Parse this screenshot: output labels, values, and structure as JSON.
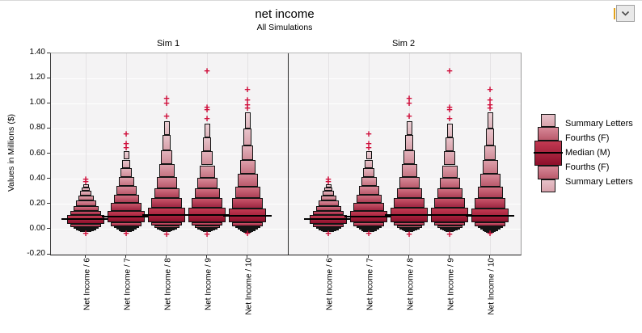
{
  "window": {
    "dropdown_icon": "chevron-down"
  },
  "chart_data": {
    "type": "letter-value-boxplot",
    "title": "net income",
    "subtitle": "All Simulations",
    "ylabel": "Values in Millions ($)",
    "ylim": [
      -0.2,
      1.4
    ],
    "yticks": [
      1.4,
      1.2,
      1.0,
      0.8,
      0.6,
      0.4,
      0.2,
      0.0,
      -0.2
    ],
    "grid": true,
    "legend_position": "right",
    "legend_entries": [
      "Summary Letters",
      "Fourths (F)",
      "Median (M)",
      "Fourths (F)",
      "Summary Letters"
    ],
    "outlier_color": "#d0103c",
    "box_color_ramp": [
      [
        "#c23a52",
        "#8e0f2b"
      ],
      [
        "#c9556a",
        "#9e2742"
      ],
      [
        "#d06f80",
        "#ad4056"
      ],
      [
        "#d78897",
        "#ba5a6c"
      ],
      [
        "#dd9faa",
        "#c67482"
      ],
      [
        "#e2b2bb",
        "#d08d99"
      ],
      [
        "#e7c2c9",
        "#d8a2ac"
      ],
      [
        "#ebcfd4",
        "#deb4bc"
      ]
    ],
    "panels": [
      {
        "title": "Sim 1",
        "categories": [
          "Net Income / 6",
          "Net Income / 7",
          "Net Income / 8",
          "Net Income / 9",
          "Net Income / 10"
        ],
        "columns": [
          {
            "category": "Net Income / 6",
            "median": 0.08,
            "segments": [
              [
                0.36,
                0.335,
                7
              ],
              [
                0.335,
                0.305,
                6
              ],
              [
                0.305,
                0.27,
                5
              ],
              [
                0.27,
                0.23,
                4
              ],
              [
                0.23,
                0.185,
                3
              ],
              [
                0.185,
                0.145,
                2
              ],
              [
                0.145,
                0.115,
                1
              ],
              [
                0.115,
                0.045,
                0
              ],
              [
                0.045,
                0.02,
                1
              ],
              [
                0.02,
                0.005,
                2
              ],
              [
                0.005,
                -0.003,
                3
              ],
              [
                -0.003,
                -0.01,
                4
              ],
              [
                -0.01,
                -0.016,
                5
              ]
            ],
            "outliers_top": [
              0.38,
              0.4
            ],
            "outliers_bottom": [
              -0.03
            ]
          },
          {
            "category": "Net Income / 7",
            "median": 0.1,
            "segments": [
              [
                0.62,
                0.555,
                7
              ],
              [
                0.555,
                0.49,
                6
              ],
              [
                0.49,
                0.42,
                5
              ],
              [
                0.42,
                0.345,
                4
              ],
              [
                0.345,
                0.275,
                3
              ],
              [
                0.275,
                0.21,
                2
              ],
              [
                0.21,
                0.145,
                1
              ],
              [
                0.145,
                0.055,
                0
              ],
              [
                0.055,
                0.025,
                1
              ],
              [
                0.025,
                0.01,
                2
              ],
              [
                0.01,
                0.0,
                3
              ],
              [
                0.0,
                -0.008,
                4
              ],
              [
                -0.008,
                -0.015,
                5
              ]
            ],
            "outliers_top": [
              0.65,
              0.68,
              0.76
            ],
            "outliers_bottom": [
              -0.03
            ]
          },
          {
            "category": "Net Income / 8",
            "median": 0.115,
            "segments": [
              [
                0.86,
                0.75,
                7
              ],
              [
                0.75,
                0.63,
                6
              ],
              [
                0.63,
                0.52,
                5
              ],
              [
                0.52,
                0.42,
                4
              ],
              [
                0.42,
                0.33,
                3
              ],
              [
                0.33,
                0.25,
                2
              ],
              [
                0.25,
                0.17,
                1
              ],
              [
                0.17,
                0.06,
                0
              ],
              [
                0.06,
                0.03,
                1
              ],
              [
                0.03,
                0.015,
                2
              ],
              [
                0.015,
                0.005,
                3
              ],
              [
                0.005,
                -0.003,
                4
              ],
              [
                -0.003,
                -0.01,
                5
              ],
              [
                -0.01,
                -0.016,
                6
              ]
            ],
            "outliers_top": [
              0.9,
              1.0,
              1.04
            ],
            "outliers_bottom": [
              -0.04
            ]
          },
          {
            "category": "Net Income / 9",
            "median": 0.115,
            "segments": [
              [
                0.84,
                0.73,
                7
              ],
              [
                0.73,
                0.62,
                6
              ],
              [
                0.62,
                0.51,
                5
              ],
              [
                0.51,
                0.41,
                4
              ],
              [
                0.41,
                0.33,
                3
              ],
              [
                0.33,
                0.25,
                2
              ],
              [
                0.25,
                0.17,
                1
              ],
              [
                0.17,
                0.06,
                0
              ],
              [
                0.06,
                0.03,
                1
              ],
              [
                0.03,
                0.015,
                2
              ],
              [
                0.015,
                0.005,
                3
              ],
              [
                0.005,
                -0.003,
                4
              ],
              [
                -0.003,
                -0.01,
                5
              ],
              [
                -0.01,
                -0.016,
                6
              ]
            ],
            "outliers_top": [
              0.88,
              0.95,
              0.97,
              1.26
            ],
            "outliers_bottom": [
              -0.04
            ]
          },
          {
            "category": "Net Income / 10",
            "median": 0.11,
            "segments": [
              [
                0.93,
                0.8,
                7
              ],
              [
                0.8,
                0.67,
                6
              ],
              [
                0.67,
                0.55,
                5
              ],
              [
                0.55,
                0.44,
                4
              ],
              [
                0.44,
                0.34,
                3
              ],
              [
                0.34,
                0.25,
                2
              ],
              [
                0.25,
                0.165,
                1
              ],
              [
                0.165,
                0.055,
                0
              ],
              [
                0.055,
                0.025,
                1
              ],
              [
                0.025,
                0.01,
                2
              ],
              [
                0.01,
                0.0,
                3
              ],
              [
                0.0,
                -0.008,
                4
              ],
              [
                -0.008,
                -0.015,
                5
              ],
              [
                -0.015,
                -0.021,
                6
              ]
            ],
            "outliers_top": [
              0.96,
              0.99,
              1.03,
              1.11
            ],
            "outliers_bottom": [
              -0.035
            ]
          }
        ]
      },
      {
        "title": "Sim 2",
        "categories": [
          "Net Income / 6",
          "Net Income / 7",
          "Net Income / 8",
          "Net Income / 9",
          "Net Income / 10"
        ],
        "columns": [
          {
            "category": "Net Income / 6",
            "median": 0.08,
            "segments": [
              [
                0.36,
                0.335,
                7
              ],
              [
                0.335,
                0.305,
                6
              ],
              [
                0.305,
                0.27,
                5
              ],
              [
                0.27,
                0.23,
                4
              ],
              [
                0.23,
                0.185,
                3
              ],
              [
                0.185,
                0.145,
                2
              ],
              [
                0.145,
                0.115,
                1
              ],
              [
                0.115,
                0.045,
                0
              ],
              [
                0.045,
                0.02,
                1
              ],
              [
                0.02,
                0.005,
                2
              ],
              [
                0.005,
                -0.003,
                3
              ],
              [
                -0.003,
                -0.01,
                4
              ],
              [
                -0.01,
                -0.016,
                5
              ]
            ],
            "outliers_top": [
              0.38,
              0.4
            ],
            "outliers_bottom": [
              -0.03
            ]
          },
          {
            "category": "Net Income / 7",
            "median": 0.1,
            "segments": [
              [
                0.62,
                0.555,
                7
              ],
              [
                0.555,
                0.49,
                6
              ],
              [
                0.49,
                0.42,
                5
              ],
              [
                0.42,
                0.345,
                4
              ],
              [
                0.345,
                0.275,
                3
              ],
              [
                0.275,
                0.21,
                2
              ],
              [
                0.21,
                0.145,
                1
              ],
              [
                0.145,
                0.055,
                0
              ],
              [
                0.055,
                0.025,
                1
              ],
              [
                0.025,
                0.01,
                2
              ],
              [
                0.01,
                0.0,
                3
              ],
              [
                0.0,
                -0.008,
                4
              ],
              [
                -0.008,
                -0.015,
                5
              ]
            ],
            "outliers_top": [
              0.65,
              0.68,
              0.76
            ],
            "outliers_bottom": [
              -0.03
            ]
          },
          {
            "category": "Net Income / 8",
            "median": 0.115,
            "segments": [
              [
                0.86,
                0.75,
                7
              ],
              [
                0.75,
                0.63,
                6
              ],
              [
                0.63,
                0.52,
                5
              ],
              [
                0.52,
                0.42,
                4
              ],
              [
                0.42,
                0.33,
                3
              ],
              [
                0.33,
                0.25,
                2
              ],
              [
                0.25,
                0.17,
                1
              ],
              [
                0.17,
                0.06,
                0
              ],
              [
                0.06,
                0.03,
                1
              ],
              [
                0.03,
                0.015,
                2
              ],
              [
                0.015,
                0.005,
                3
              ],
              [
                0.005,
                -0.003,
                4
              ],
              [
                -0.003,
                -0.01,
                5
              ],
              [
                -0.01,
                -0.016,
                6
              ]
            ],
            "outliers_top": [
              0.9,
              1.0,
              1.04
            ],
            "outliers_bottom": [
              -0.04
            ]
          },
          {
            "category": "Net Income / 9",
            "median": 0.115,
            "segments": [
              [
                0.84,
                0.73,
                7
              ],
              [
                0.73,
                0.62,
                6
              ],
              [
                0.62,
                0.51,
                5
              ],
              [
                0.51,
                0.41,
                4
              ],
              [
                0.41,
                0.33,
                3
              ],
              [
                0.33,
                0.25,
                2
              ],
              [
                0.25,
                0.17,
                1
              ],
              [
                0.17,
                0.06,
                0
              ],
              [
                0.06,
                0.03,
                1
              ],
              [
                0.03,
                0.015,
                2
              ],
              [
                0.015,
                0.005,
                3
              ],
              [
                0.005,
                -0.003,
                4
              ],
              [
                -0.003,
                -0.01,
                5
              ],
              [
                -0.01,
                -0.016,
                6
              ]
            ],
            "outliers_top": [
              0.88,
              0.95,
              0.97,
              1.26
            ],
            "outliers_bottom": [
              -0.04
            ]
          },
          {
            "category": "Net Income / 10",
            "median": 0.11,
            "segments": [
              [
                0.93,
                0.8,
                7
              ],
              [
                0.8,
                0.67,
                6
              ],
              [
                0.67,
                0.55,
                5
              ],
              [
                0.55,
                0.44,
                4
              ],
              [
                0.44,
                0.34,
                3
              ],
              [
                0.34,
                0.25,
                2
              ],
              [
                0.25,
                0.165,
                1
              ],
              [
                0.165,
                0.055,
                0
              ],
              [
                0.055,
                0.025,
                1
              ],
              [
                0.025,
                0.01,
                2
              ],
              [
                0.01,
                0.0,
                3
              ],
              [
                0.0,
                -0.008,
                4
              ],
              [
                -0.008,
                -0.015,
                5
              ],
              [
                -0.015,
                -0.021,
                6
              ]
            ],
            "outliers_top": [
              0.96,
              0.99,
              1.03,
              1.11
            ],
            "outliers_bottom": [
              -0.035
            ]
          }
        ]
      }
    ]
  }
}
